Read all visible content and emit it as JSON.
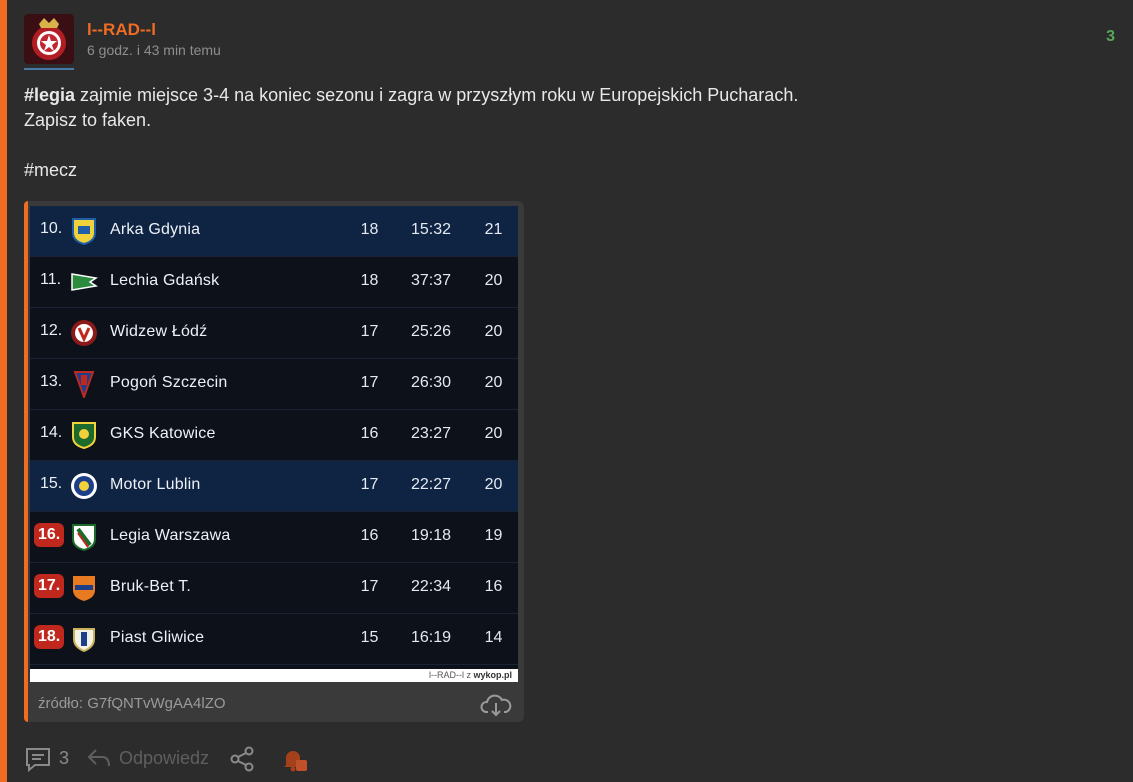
{
  "post": {
    "username": "l--RAD--l",
    "timestamp": "6 godz. i 43 min temu",
    "votes": "3",
    "text": {
      "line1_tag": "#legia",
      "line1_rest": " zajmie miejsce 3-4 na koniec sezonu i zagra w przyszłym roku w Europejskich Pucharach.",
      "line2": "Zapisz to faken.",
      "tag2": "#mecz"
    }
  },
  "standings": {
    "rows": [
      {
        "pos": "10.",
        "team": "Arka Gdynia",
        "played": "18",
        "goals": "15:32",
        "points": "21"
      },
      {
        "pos": "11.",
        "team": "Lechia Gdańsk",
        "played": "18",
        "goals": "37:37",
        "points": "20"
      },
      {
        "pos": "12.",
        "team": "Widzew Łódź",
        "played": "17",
        "goals": "25:26",
        "points": "20"
      },
      {
        "pos": "13.",
        "team": "Pogoń Szczecin",
        "played": "17",
        "goals": "26:30",
        "points": "20"
      },
      {
        "pos": "14.",
        "team": "GKS Katowice",
        "played": "16",
        "goals": "23:27",
        "points": "20"
      },
      {
        "pos": "15.",
        "team": "Motor Lublin",
        "played": "17",
        "goals": "22:27",
        "points": "20"
      },
      {
        "pos": "16.",
        "team": "Legia Warszawa",
        "played": "16",
        "goals": "19:18",
        "points": "19"
      },
      {
        "pos": "17.",
        "team": "Bruk-Bet T.",
        "played": "17",
        "goals": "22:34",
        "points": "16"
      },
      {
        "pos": "18.",
        "team": "Piast Gliwice",
        "played": "15",
        "goals": "16:19",
        "points": "14"
      }
    ],
    "watermark_user": "l--RAD--l",
    "watermark_z": "z",
    "watermark_site": "wykop.pl"
  },
  "attachment": {
    "source": "źródło: G7fQNTvWgAA4lZO"
  },
  "footer": {
    "comments_count": "3",
    "reply_label": "Odpowiedz"
  },
  "icons": {
    "avatar": "club-crest-avatar",
    "download": "cloud-download-icon",
    "comments": "comments-icon",
    "reply": "reply-arrow-icon",
    "share": "share-icon",
    "bell": "bell-notification-icon"
  },
  "colors": {
    "accent": "#f06c22",
    "background": "#2c2c2c",
    "vote_positive": "#5aa65a",
    "relegation_badge": "#c0281e",
    "table_bg": "#0c111a",
    "table_highlight": "#0f2343"
  }
}
